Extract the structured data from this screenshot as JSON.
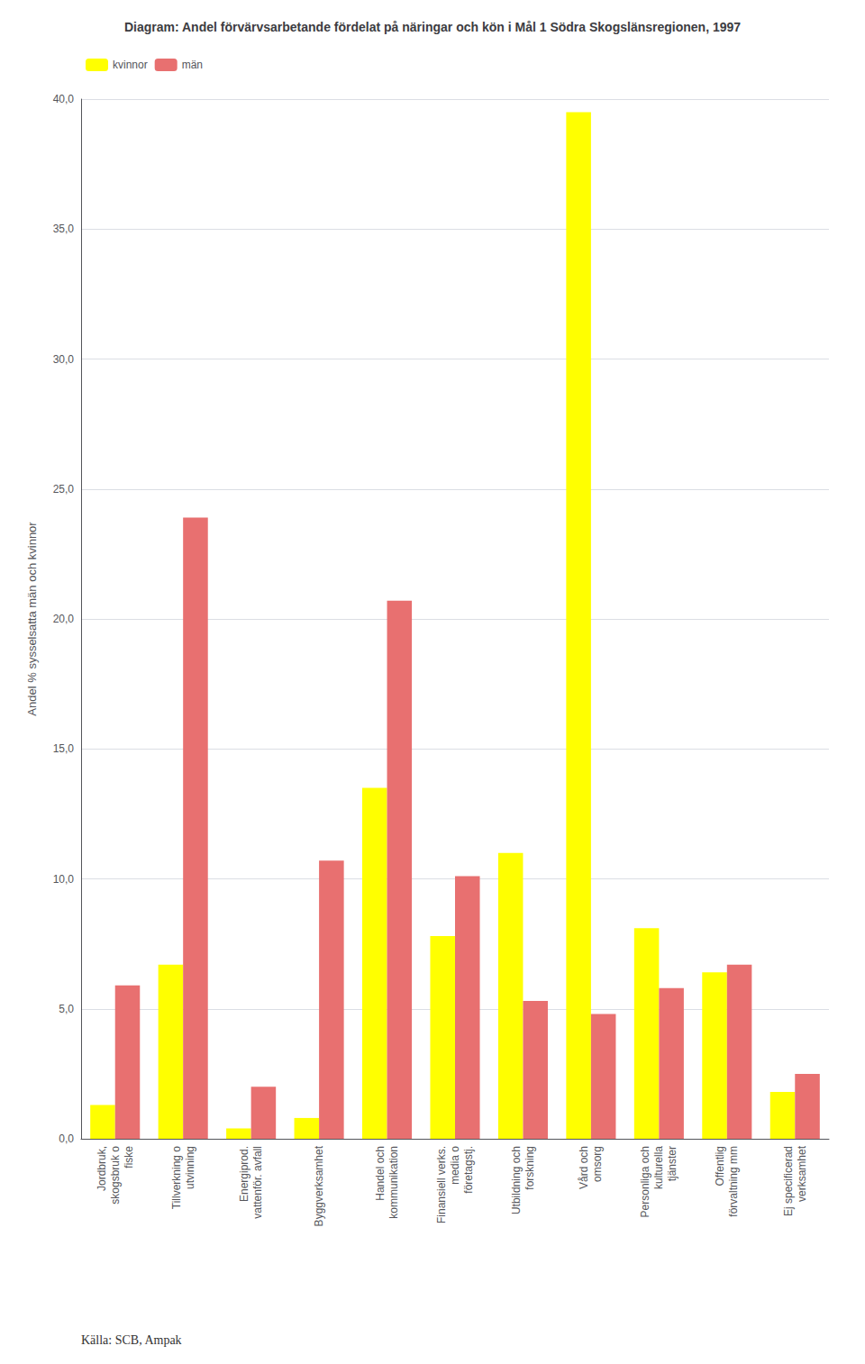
{
  "chart_data": {
    "type": "bar",
    "title": "Diagram: Andel förvärvsarbetande fördelat på näringar och kön i Mål 1 Södra Skogslänsregionen, 1997",
    "ylabel": "Andel % sysselsatta män och kvinnor",
    "categories": [
      "Jordbruk,\nskogsbruk o\nfiske",
      "Tillverkning o\nutvinning",
      "Energiprod.\nvattenför. avfall",
      "Byggverksamhet",
      "Handel och\nkommunikation",
      "Finansiell verks.\nmedia o\nföretagstj.",
      "Utbildning och\nforskning",
      "Vård och\nomsorg",
      "Personliga och\nkulturella\ntjänster",
      "Offentlig\nförvaltning mm",
      "Ej specificerad\nverksamhet"
    ],
    "series": [
      {
        "name": "kvinnor",
        "color": "#FFFF00",
        "values": [
          1.3,
          6.7,
          0.4,
          0.8,
          13.5,
          7.8,
          11.0,
          39.5,
          8.1,
          6.4,
          1.8
        ]
      },
      {
        "name": "män",
        "color": "#E87070",
        "values": [
          5.9,
          23.9,
          2.0,
          10.7,
          20.7,
          10.1,
          5.3,
          4.8,
          5.8,
          6.7,
          2.5
        ]
      }
    ],
    "ylim": [
      0,
      40
    ],
    "yticks": [
      {
        "value": 0,
        "label": "0,0"
      },
      {
        "value": 5,
        "label": "5,0"
      },
      {
        "value": 10,
        "label": "10,0"
      },
      {
        "value": 15,
        "label": "15,0"
      },
      {
        "value": 20,
        "label": "20,0"
      },
      {
        "value": 25,
        "label": "25,0"
      },
      {
        "value": 30,
        "label": "30,0"
      },
      {
        "value": 35,
        "label": "35,0"
      },
      {
        "value": 40,
        "label": "40,0"
      }
    ],
    "grid": true,
    "legend": "upper left",
    "annotations": [
      "Källa: SCB, Ampak"
    ]
  }
}
